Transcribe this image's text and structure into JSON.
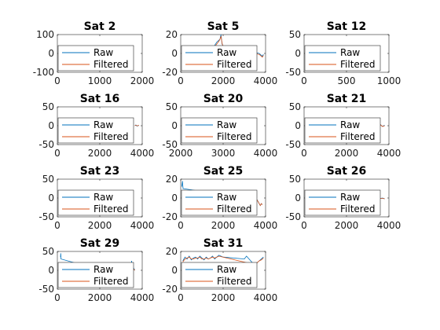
{
  "chart_data": [
    {
      "type": "line",
      "title": "Sat 2",
      "xlim": [
        0,
        2000
      ],
      "ylim": [
        -100,
        100
      ],
      "xticks": [
        0,
        1000,
        2000
      ],
      "xtick_labels": [
        "0",
        "1000",
        "2000"
      ],
      "yticks": [
        -100,
        0,
        100
      ],
      "ytick_labels": [
        "-100",
        "0",
        "100"
      ],
      "legend": "bottom-left",
      "grid": false,
      "series": [
        {
          "name": "Raw",
          "color": "#0072BD",
          "x": [],
          "y": []
        },
        {
          "name": "Filtered",
          "color": "#D95319",
          "x": [],
          "y": []
        }
      ]
    },
    {
      "type": "line",
      "title": "Sat 5",
      "xlim": [
        0,
        4000
      ],
      "ylim": [
        -20,
        20
      ],
      "xticks": [
        0,
        2000,
        4000
      ],
      "xtick_labels": [
        "0",
        "2000",
        "4000"
      ],
      "yticks": [
        -20,
        0,
        20
      ],
      "ytick_labels": [
        "-20",
        "0",
        "20"
      ],
      "legend": "bottom-left",
      "grid": false,
      "series": [
        {
          "name": "Raw",
          "color": "#0072BD",
          "x": [
            1500,
            1700,
            1800,
            1850,
            1900,
            1950,
            2000,
            3700,
            3800,
            3850,
            3900
          ],
          "y": [
            5,
            12,
            14,
            15,
            20,
            10,
            8,
            0,
            -2,
            -3,
            -1
          ]
        },
        {
          "name": "Filtered",
          "color": "#D95319",
          "x": [
            1500,
            1700,
            1800,
            1850,
            1900,
            1950,
            2000,
            3700,
            3800,
            3850,
            3900
          ],
          "y": [
            4,
            10,
            13,
            15,
            18,
            11,
            7,
            -1,
            -3,
            -4,
            -2
          ]
        }
      ]
    },
    {
      "type": "line",
      "title": "Sat 12",
      "xlim": [
        0,
        1000
      ],
      "ylim": [
        -50,
        50
      ],
      "xticks": [
        0,
        500,
        1000
      ],
      "xtick_labels": [
        "0",
        "500",
        "1000"
      ],
      "yticks": [
        -50,
        0,
        50
      ],
      "ytick_labels": [
        "-50",
        "0",
        "50"
      ],
      "legend": "bottom-left",
      "grid": false,
      "series": [
        {
          "name": "Raw",
          "color": "#0072BD",
          "x": [],
          "y": []
        },
        {
          "name": "Filtered",
          "color": "#D95319",
          "x": [],
          "y": []
        }
      ]
    },
    {
      "type": "line",
      "title": "Sat 16",
      "xlim": [
        0,
        4000
      ],
      "ylim": [
        -50,
        50
      ],
      "xticks": [
        0,
        2000,
        4000
      ],
      "xtick_labels": [
        "0",
        "2000",
        "4000"
      ],
      "yticks": [
        -50,
        0,
        50
      ],
      "ytick_labels": [
        "-50",
        "0",
        "50"
      ],
      "legend": "bottom-left",
      "grid": false,
      "series": [
        {
          "name": "Raw",
          "color": "#0072BD",
          "x": [
            3650,
            3700,
            3750,
            3800,
            3850
          ],
          "y": [
            0,
            2,
            -1,
            0,
            1
          ]
        },
        {
          "name": "Filtered",
          "color": "#D95319",
          "x": [
            3650,
            3700,
            3750,
            3800,
            3850
          ],
          "y": [
            0,
            1,
            0,
            0,
            1
          ]
        }
      ]
    },
    {
      "type": "line",
      "title": "Sat 20",
      "xlim": [
        2000,
        4000
      ],
      "ylim": [
        -50,
        50
      ],
      "xticks": [
        2000,
        3000,
        4000
      ],
      "xtick_labels": [
        "2000",
        "3000",
        "4000"
      ],
      "yticks": [
        -50,
        0,
        50
      ],
      "ytick_labels": [
        "-50",
        "0",
        "50"
      ],
      "legend": "bottom-left",
      "grid": false,
      "series": [
        {
          "name": "Raw",
          "color": "#0072BD",
          "x": [
            3700,
            3720,
            3740,
            3760
          ],
          "y": [
            -2,
            3,
            -3,
            1
          ]
        },
        {
          "name": "Filtered",
          "color": "#D95319",
          "x": [
            3700,
            3720,
            3740,
            3760
          ],
          "y": [
            -1,
            2,
            -2,
            1
          ]
        }
      ]
    },
    {
      "type": "line",
      "title": "Sat 21",
      "xlim": [
        0,
        4000
      ],
      "ylim": [
        -50,
        50
      ],
      "xticks": [
        0,
        2000,
        4000
      ],
      "xtick_labels": [
        "0",
        "2000",
        "4000"
      ],
      "yticks": [
        -50,
        0,
        50
      ],
      "ytick_labels": [
        "-50",
        "0",
        "50"
      ],
      "legend": "bottom-left",
      "grid": false,
      "series": [
        {
          "name": "Raw",
          "color": "#0072BD",
          "x": [
            3550,
            3600,
            3650,
            3700,
            3750,
            3800
          ],
          "y": [
            5,
            3,
            0,
            -2,
            0,
            1
          ]
        },
        {
          "name": "Filtered",
          "color": "#D95319",
          "x": [
            3550,
            3600,
            3650,
            3700,
            3750,
            3800
          ],
          "y": [
            4,
            2,
            0,
            -2,
            -1,
            0
          ]
        }
      ]
    },
    {
      "type": "line",
      "title": "Sat 23",
      "xlim": [
        0,
        4000
      ],
      "ylim": [
        -50,
        50
      ],
      "xticks": [
        0,
        2000,
        4000
      ],
      "xtick_labels": [
        "0",
        "2000",
        "4000"
      ],
      "yticks": [
        -50,
        0,
        50
      ],
      "ytick_labels": [
        "-50",
        "0",
        "50"
      ],
      "legend": "bottom-left",
      "grid": false,
      "series": [
        {
          "name": "Raw",
          "color": "#0072BD",
          "x": [],
          "y": []
        },
        {
          "name": "Filtered",
          "color": "#D95319",
          "x": [],
          "y": []
        }
      ]
    },
    {
      "type": "line",
      "title": "Sat 25",
      "xlim": [
        0,
        4000
      ],
      "ylim": [
        -20,
        20
      ],
      "xticks": [
        0,
        2000,
        4000
      ],
      "xtick_labels": [
        "0",
        "2000",
        "4000"
      ],
      "yticks": [
        -20,
        0,
        20
      ],
      "ytick_labels": [
        "-20",
        "0",
        "20"
      ],
      "legend": "bottom-left",
      "grid": false,
      "series": [
        {
          "name": "Raw",
          "color": "#0072BD",
          "x": [
            50,
            80,
            110,
            3600,
            3650,
            3700,
            3750,
            3800,
            3850
          ],
          "y": [
            12,
            18,
            10,
            -2,
            -4,
            -6,
            -8,
            -6,
            -7
          ]
        },
        {
          "name": "Filtered",
          "color": "#D95319",
          "x": [
            3600,
            3650,
            3700,
            3750,
            3800,
            3850
          ],
          "y": [
            -2,
            -4,
            -6,
            -8,
            -6,
            -7
          ]
        }
      ]
    },
    {
      "type": "line",
      "title": "Sat 26",
      "xlim": [
        0,
        4000
      ],
      "ylim": [
        -50,
        50
      ],
      "xticks": [
        0,
        2000,
        4000
      ],
      "xtick_labels": [
        "0",
        "2000",
        "4000"
      ],
      "yticks": [
        -50,
        0,
        50
      ],
      "ytick_labels": [
        "-50",
        "0",
        "50"
      ],
      "legend": "bottom-left",
      "grid": false,
      "series": [
        {
          "name": "Raw",
          "color": "#0072BD",
          "x": [
            3500,
            3600,
            3700,
            3800
          ],
          "y": [
            0,
            -1,
            0,
            -2
          ]
        },
        {
          "name": "Filtered",
          "color": "#D95319",
          "x": [
            3500,
            3600,
            3700,
            3800
          ],
          "y": [
            0,
            -1,
            -1,
            -2
          ]
        }
      ]
    },
    {
      "type": "line",
      "title": "Sat 29",
      "xlim": [
        0,
        4000
      ],
      "ylim": [
        -50,
        50
      ],
      "xticks": [
        0,
        2000,
        4000
      ],
      "xtick_labels": [
        "0",
        "2000",
        "4000"
      ],
      "yticks": [
        -50,
        0,
        50
      ],
      "ytick_labels": [
        "-50",
        "0",
        "50"
      ],
      "legend": "bottom-left",
      "grid": false,
      "series": [
        {
          "name": "Raw",
          "color": "#0072BD",
          "x": [
            150,
            160,
            170,
            3350,
            3400,
            3450,
            3500,
            3550,
            3600,
            3650
          ],
          "y": [
            35,
            45,
            30,
            -20,
            15,
            -5,
            25,
            -10,
            5,
            0
          ]
        },
        {
          "name": "Filtered",
          "color": "#D95319",
          "x": [
            3350,
            3400,
            3450,
            3500,
            3550,
            3600,
            3650
          ],
          "y": [
            -15,
            10,
            -3,
            18,
            -8,
            3,
            0
          ]
        }
      ]
    },
    {
      "type": "line",
      "title": "Sat 31",
      "xlim": [
        0,
        4000
      ],
      "ylim": [
        -20,
        20
      ],
      "xticks": [
        0,
        2000,
        4000
      ],
      "xtick_labels": [
        "0",
        "2000",
        "4000"
      ],
      "yticks": [
        -20,
        0,
        20
      ],
      "ytick_labels": [
        "-20",
        "0",
        "20"
      ],
      "legend": "bottom-left",
      "grid": false,
      "series": [
        {
          "name": "Raw",
          "color": "#0072BD",
          "x": [
            100,
            200,
            300,
            400,
            500,
            600,
            700,
            800,
            900,
            1000,
            1100,
            1200,
            1300,
            1400,
            1500,
            1600,
            1700,
            1800,
            2000,
            3000,
            3100,
            3500,
            3600,
            3700,
            3800,
            3900
          ],
          "y": [
            10,
            14,
            12,
            15,
            11,
            13,
            14,
            12,
            15,
            13,
            11,
            14,
            12,
            13,
            15,
            12,
            14,
            16,
            14,
            12,
            15,
            5,
            8,
            10,
            12,
            14
          ]
        },
        {
          "name": "Filtered",
          "color": "#D95319",
          "x": [
            100,
            200,
            300,
            400,
            500,
            600,
            700,
            800,
            900,
            1000,
            1100,
            1200,
            1300,
            1400,
            1500,
            1600,
            1700,
            1800,
            3500,
            3600,
            3700,
            3800,
            3900
          ],
          "y": [
            9,
            12,
            13,
            14,
            12,
            12,
            13,
            13,
            14,
            12,
            12,
            13,
            12,
            13,
            14,
            13,
            14,
            15,
            6,
            8,
            10,
            11,
            13
          ]
        }
      ]
    }
  ]
}
